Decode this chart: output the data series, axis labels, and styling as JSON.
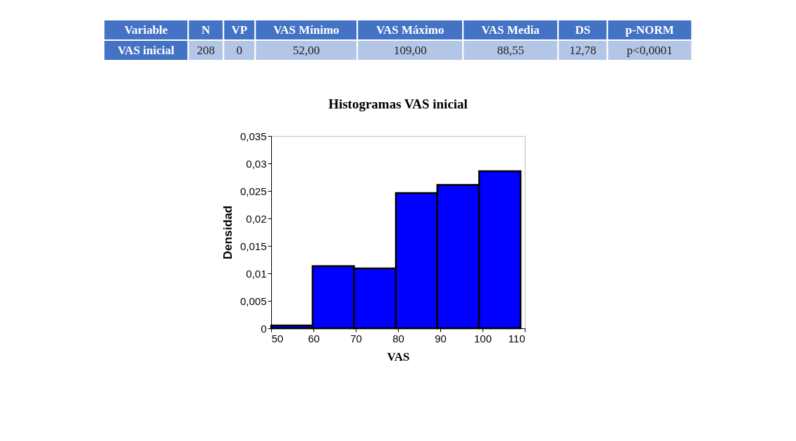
{
  "chart_data": [
    {
      "type": "other",
      "categories": [
        "Variable",
        "N",
        "VP",
        "VAS Mínimo",
        "VAS Máximo",
        "VAS Media",
        "DS",
        "p-NORM"
      ],
      "annotations": [
        "VAS inicial",
        "208",
        "0",
        "52,00",
        "109,00",
        "88,55",
        "12,78",
        "p<0,0001"
      ],
      "colors": [
        "#4472c4",
        "#b4c6e7"
      ]
    },
    {
      "type": "histogram",
      "title": "Histogramas VAS inicial",
      "xlabel": "VAS",
      "ylabel": "Densidad",
      "bins": [
        50,
        59.8,
        69.6,
        79.5,
        89.3,
        99.2,
        109
      ],
      "values": [
        0.0005,
        0.0113,
        0.0109,
        0.0246,
        0.0261,
        0.0286
      ],
      "color": "#0000ff",
      "xlim": [
        50,
        110
      ],
      "xticks": [
        50,
        60,
        70,
        80,
        90,
        100,
        110
      ],
      "ylim": [
        0,
        0.035
      ],
      "yticks": [
        {
          "value": 0,
          "label": "0"
        },
        {
          "value": 0.005,
          "label": "0,005"
        },
        {
          "value": 0.01,
          "label": "0,01"
        },
        {
          "value": 0.015,
          "label": "0,015"
        },
        {
          "value": 0.02,
          "label": "0,02"
        },
        {
          "value": 0.025,
          "label": "0,025"
        },
        {
          "value": 0.03,
          "label": "0,03"
        },
        {
          "value": 0.035,
          "label": "0,035"
        }
      ],
      "grid": false
    }
  ]
}
